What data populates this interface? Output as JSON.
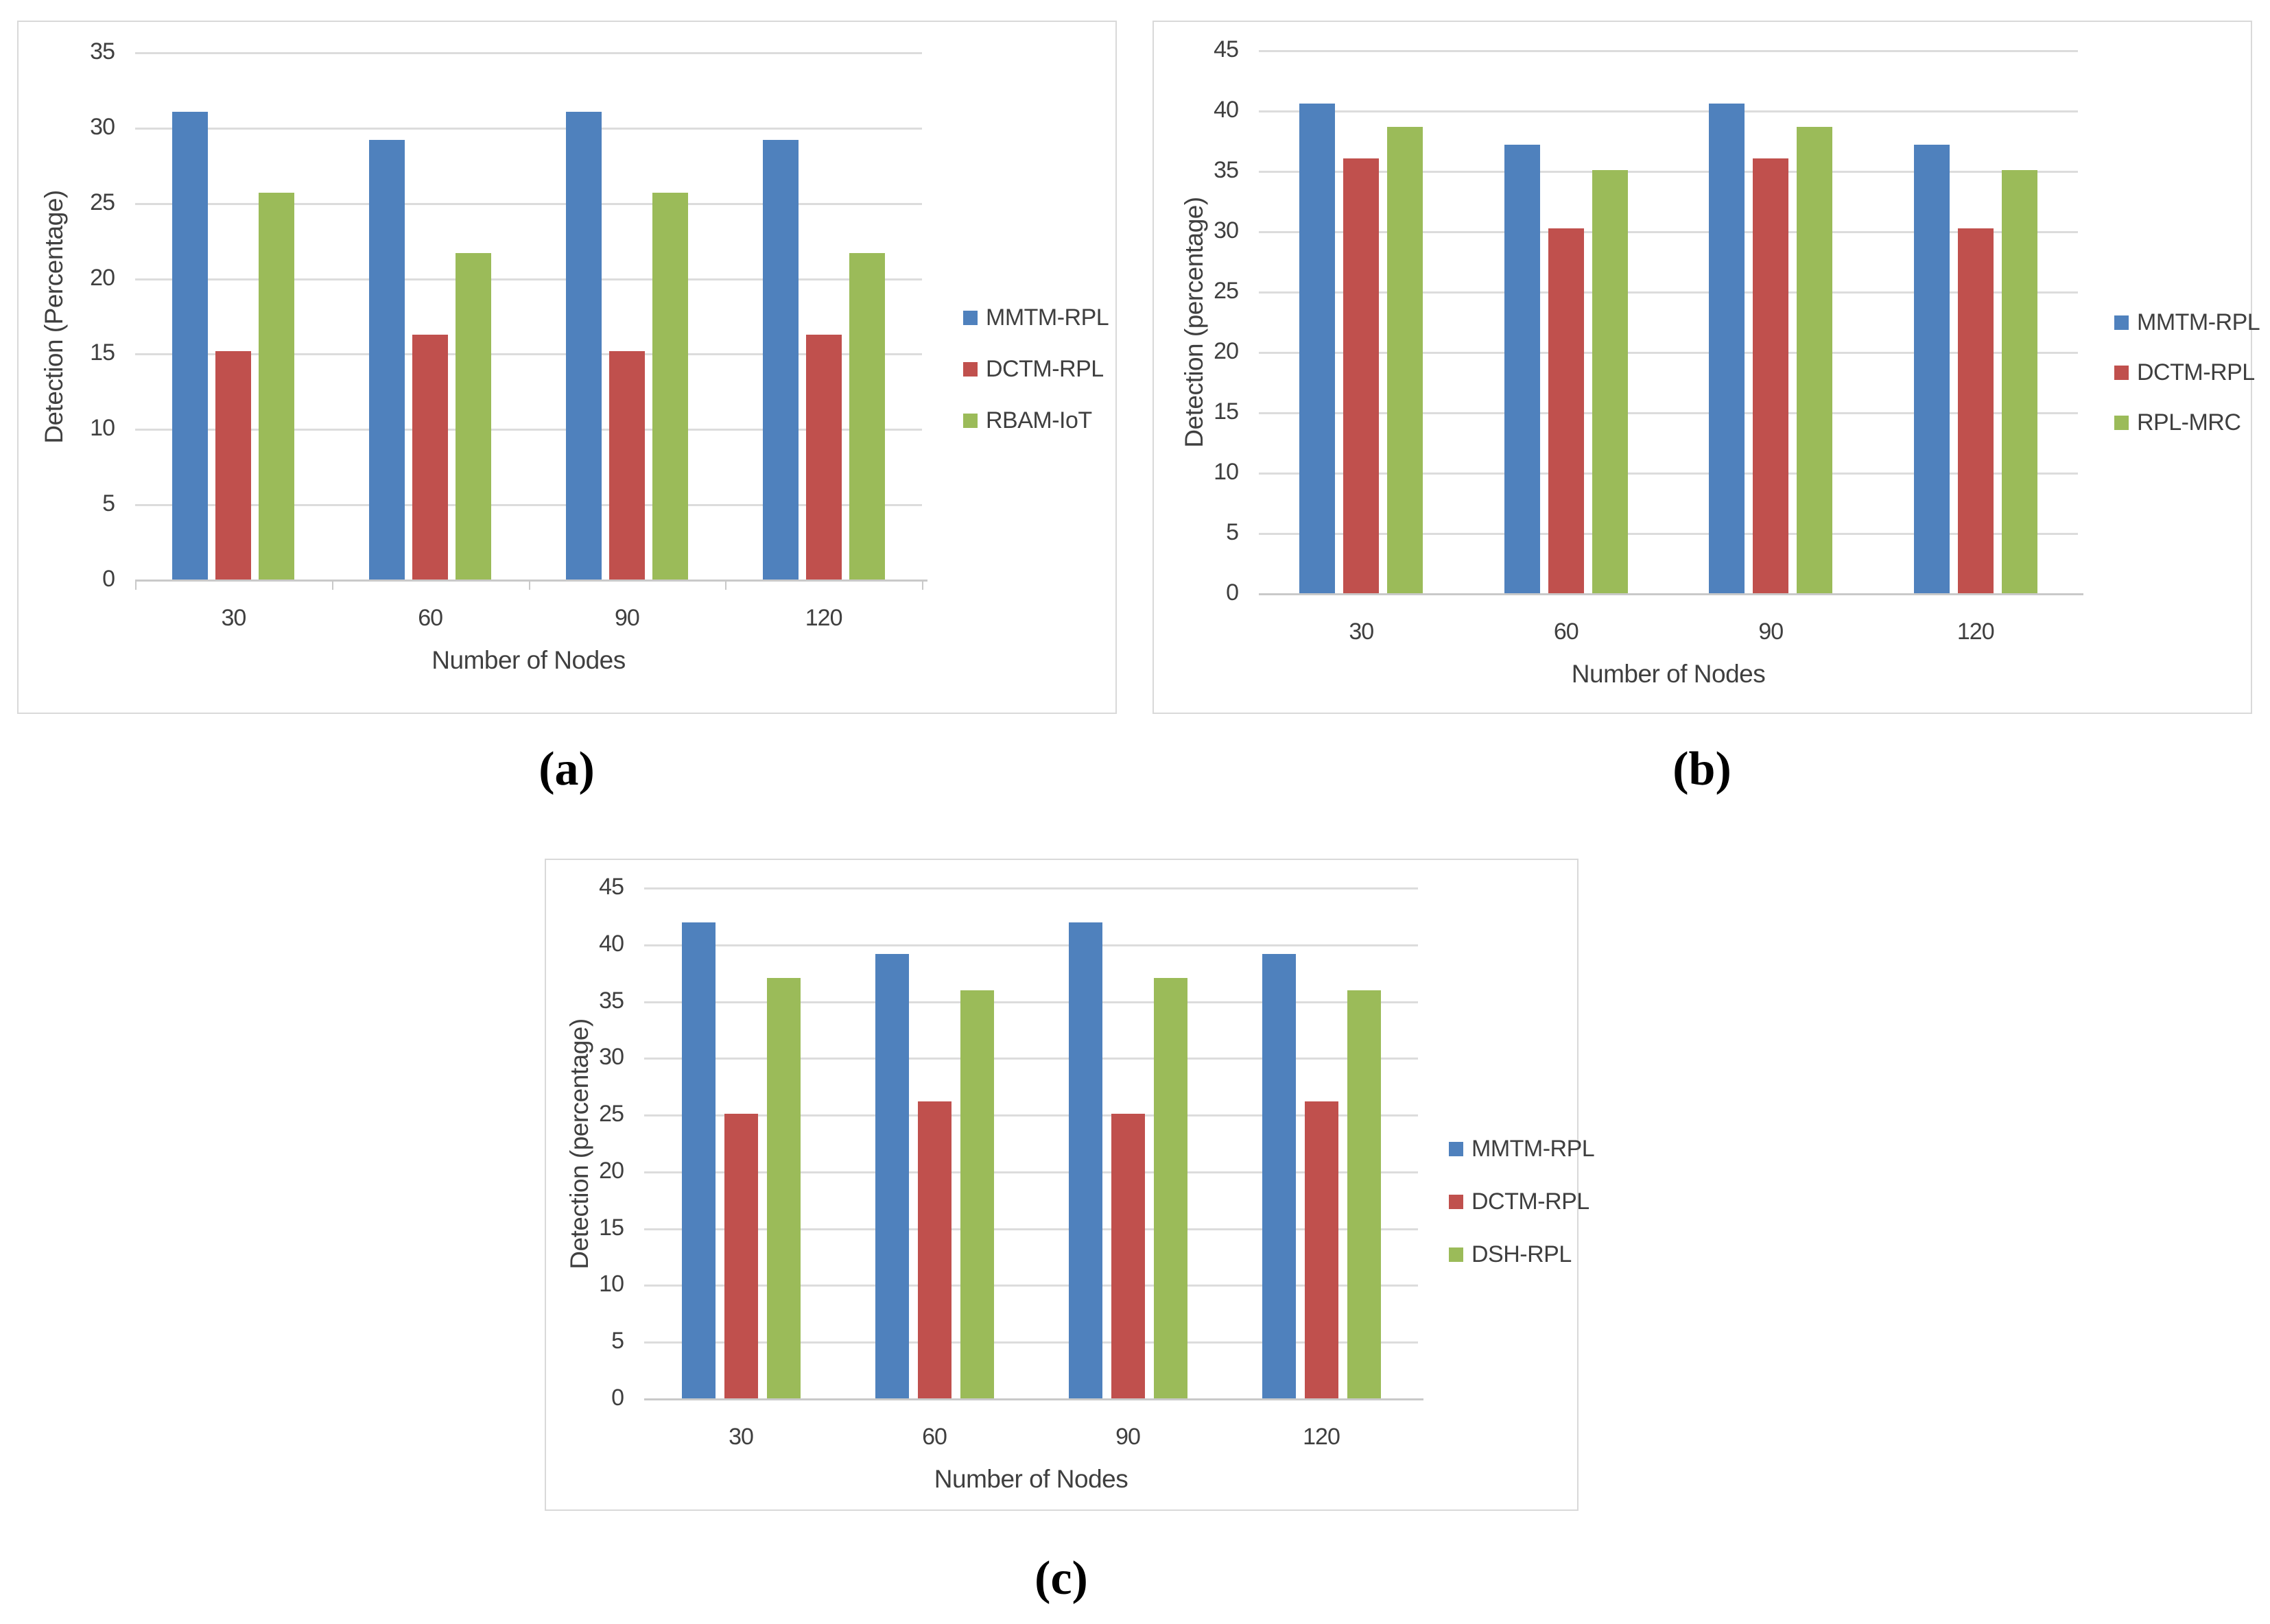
{
  "figure": {
    "captions": {
      "a": "(a)",
      "b": "(b)",
      "c": "(c)"
    }
  },
  "colors": {
    "series_blue": "#4F81BD",
    "series_red": "#C0504D",
    "series_green": "#9BBB59",
    "gridline": "#DCDCDC",
    "axis_line": "#C9C9C9",
    "text": "#3F3F3F",
    "panel_border": "#D9D9D9"
  },
  "chart_data": [
    {
      "id": "a",
      "type": "bar",
      "title": "",
      "xlabel": "Number of Nodes",
      "ylabel": "Detection (Percentage)",
      "categories": [
        "30",
        "60",
        "90",
        "120"
      ],
      "series": [
        {
          "name": "MMTM-RPL",
          "color_key": "series_blue",
          "values": [
            31.1,
            29.2,
            31.1,
            29.2
          ]
        },
        {
          "name": "DCTM-RPL",
          "color_key": "series_red",
          "values": [
            15.2,
            16.3,
            15.2,
            16.3
          ]
        },
        {
          "name": "RBAM-IoT",
          "color_key": "series_green",
          "values": [
            25.7,
            21.7,
            25.7,
            21.7
          ]
        }
      ],
      "ylim": [
        0,
        35
      ],
      "ytick_step": 5,
      "ytick_labels": [
        "0",
        "5",
        "10",
        "15",
        "20",
        "25",
        "30",
        "35"
      ],
      "grid": true,
      "legend_position": "right"
    },
    {
      "id": "b",
      "type": "bar",
      "title": "",
      "xlabel": "Number of Nodes",
      "ylabel": "Detection (percentage)",
      "categories": [
        "30",
        "60",
        "90",
        "120"
      ],
      "series": [
        {
          "name": "MMTM-RPL",
          "color_key": "series_blue",
          "values": [
            40.6,
            37.2,
            40.6,
            37.2
          ]
        },
        {
          "name": "DCTM-RPL",
          "color_key": "series_red",
          "values": [
            36.1,
            30.3,
            36.1,
            30.3
          ]
        },
        {
          "name": "RPL-MRC",
          "color_key": "series_green",
          "values": [
            38.7,
            35.1,
            38.7,
            35.1
          ]
        }
      ],
      "ylim": [
        0,
        45
      ],
      "ytick_step": 5,
      "ytick_labels": [
        "0",
        "5",
        "10",
        "15",
        "20",
        "25",
        "30",
        "35",
        "40",
        "45"
      ],
      "grid": true,
      "legend_position": "right"
    },
    {
      "id": "c",
      "type": "bar",
      "title": "",
      "xlabel": "Number of Nodes",
      "ylabel": "Detection (percentage)",
      "categories": [
        "30",
        "60",
        "90",
        "120"
      ],
      "series": [
        {
          "name": "MMTM-RPL",
          "color_key": "series_blue",
          "values": [
            42.0,
            39.2,
            42.0,
            39.2
          ]
        },
        {
          "name": "DCTM-RPL",
          "color_key": "series_red",
          "values": [
            25.1,
            26.2,
            25.1,
            26.2
          ]
        },
        {
          "name": "DSH-RPL",
          "color_key": "series_green",
          "values": [
            37.1,
            36.0,
            37.1,
            36.0
          ]
        }
      ],
      "ylim": [
        0,
        45
      ],
      "ytick_step": 5,
      "ytick_labels": [
        "0",
        "5",
        "10",
        "15",
        "20",
        "25",
        "30",
        "35",
        "40",
        "45"
      ],
      "grid": true,
      "legend_position": "right"
    }
  ]
}
